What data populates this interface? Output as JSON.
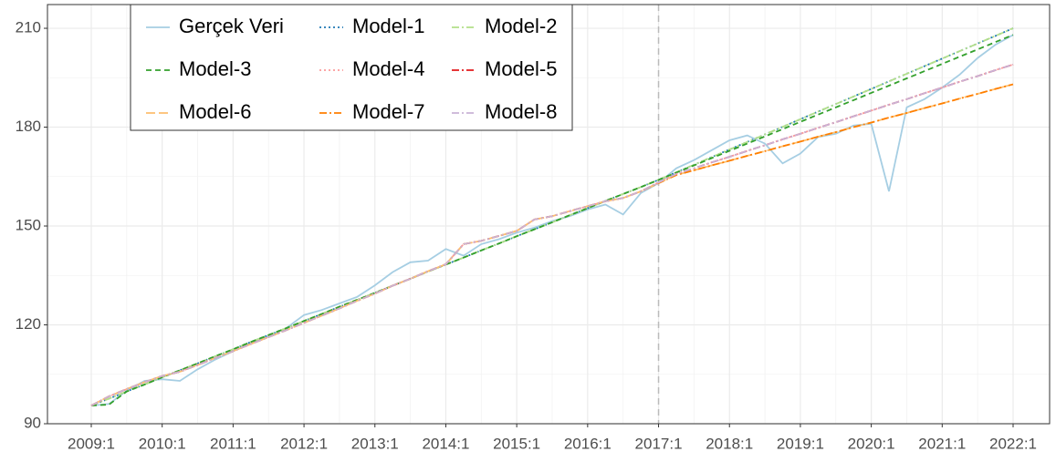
{
  "chart_data": {
    "type": "line",
    "categories": [
      "2009:1",
      null,
      null,
      null,
      "2010:1",
      null,
      null,
      null,
      "2011:1",
      null,
      null,
      null,
      "2012:1",
      null,
      null,
      null,
      "2013:1",
      null,
      null,
      null,
      "2014:1",
      null,
      null,
      null,
      "2015:1",
      null,
      null,
      null,
      "2016:1",
      null,
      null,
      null,
      "2017:1",
      null,
      null,
      null,
      "2018:1",
      null,
      null,
      null,
      "2019:1",
      null,
      null,
      null,
      "2020:1",
      null,
      null,
      null,
      "2021:1",
      null,
      null,
      null,
      "2022:1"
    ],
    "ylim": [
      90,
      217.2
    ],
    "yticks": [
      90,
      120,
      150,
      180,
      210
    ],
    "grid": true,
    "vline": "2017:1",
    "legend": "top-left",
    "series": [
      {
        "name": "Gerçek Veri",
        "color": "#a6cee3",
        "dash": "none",
        "values": [
          95.5,
          96,
          100,
          103,
          103.5,
          103,
          106.5,
          109.5,
          112,
          114.5,
          116.5,
          119,
          123,
          124.5,
          126.5,
          128.5,
          132,
          136,
          139,
          139.5,
          143,
          141,
          144.5,
          146,
          148,
          149.5,
          151.5,
          153,
          155,
          156.5,
          153.5,
          160,
          163,
          167.5,
          170,
          173,
          176,
          177.5,
          175,
          169,
          172,
          177,
          178,
          180.5,
          181,
          160.5,
          186,
          188.5,
          192,
          196,
          201,
          205,
          208
        ]
      },
      {
        "name": "Model-1",
        "color": "#1f78b4",
        "dash": "2,3",
        "values": [
          95.5,
          97.6,
          99.8,
          101.9,
          104.1,
          106.2,
          108.3,
          110.5,
          112.6,
          114.8,
          116.9,
          119.0,
          121.2,
          123.3,
          125.5,
          127.6,
          129.7,
          131.9,
          134.0,
          136.2,
          138.3,
          140.4,
          142.6,
          144.7,
          146.9,
          149.0,
          151.1,
          153.3,
          155.4,
          157.6,
          159.7,
          161.8,
          164.0,
          166.3,
          168.6,
          170.9,
          173.2,
          175.5,
          177.8,
          180.1,
          182.4,
          184.7,
          187.0,
          189.3,
          191.6,
          193.9,
          196.2,
          198.5,
          200.8,
          203.1,
          205.4,
          207.7,
          210.0
        ]
      },
      {
        "name": "Model-2",
        "color": "#b2df8a",
        "dash": "8,3,2,3",
        "values": [
          95.5,
          97.6,
          99.8,
          101.9,
          104.1,
          106.2,
          108.3,
          110.5,
          112.6,
          114.8,
          116.9,
          119.0,
          121.2,
          123.3,
          125.5,
          127.6,
          129.7,
          131.9,
          134.0,
          136.2,
          138.3,
          140.4,
          142.6,
          144.7,
          146.9,
          149.0,
          151.1,
          153.3,
          155.4,
          157.6,
          159.7,
          161.8,
          164.0,
          166.3,
          168.6,
          170.9,
          173.2,
          175.5,
          177.8,
          180.1,
          182.4,
          184.7,
          187.0,
          189.3,
          191.6,
          193.9,
          196.2,
          198.5,
          200.8,
          203.1,
          205.4,
          207.7,
          210.0
        ]
      },
      {
        "name": "Model-3",
        "color": "#33a02c",
        "dash": "6,4",
        "values": [
          95.5,
          95.8,
          99.8,
          101.9,
          104.1,
          106.2,
          108.3,
          110.5,
          112.6,
          114.8,
          116.9,
          119.0,
          121.2,
          123.3,
          125.5,
          127.6,
          129.7,
          131.9,
          134.0,
          136.2,
          138.3,
          140.4,
          142.6,
          144.7,
          146.9,
          149.0,
          151.1,
          153.3,
          155.4,
          157.6,
          159.7,
          161.8,
          164.0,
          166.2,
          168.4,
          170.6,
          172.8,
          175.0,
          177.2,
          179.4,
          181.6,
          183.8,
          186.0,
          188.2,
          190.4,
          192.6,
          194.8,
          197.0,
          199.2,
          201.4,
          203.6,
          205.8,
          208.0
        ]
      },
      {
        "name": "Model-4",
        "color": "#fb9a99",
        "dash": "2,3",
        "values": [
          95.5,
          98.3,
          100.5,
          102.6,
          104.5,
          105.8,
          107.8,
          110.0,
          112.0,
          114.2,
          116.3,
          118.4,
          120.6,
          122.8,
          125.0,
          127.3,
          129.5,
          131.9,
          134.0,
          136.3,
          138.4,
          144.5,
          145.5,
          147.0,
          148.5,
          152.0,
          153.0,
          154.5,
          156.0,
          157.5,
          158.5,
          160.5,
          163.2,
          165.8,
          167.5,
          169.3,
          171.0,
          172.8,
          174.5,
          176.3,
          178.0,
          179.8,
          181.5,
          183.3,
          185.0,
          186.8,
          188.5,
          190.3,
          192.0,
          193.8,
          195.5,
          197.3,
          199.0
        ]
      },
      {
        "name": "Model-5",
        "color": "#e31a1c",
        "dash": "8,3,2,3",
        "values": [
          95.5,
          98.3,
          100.5,
          102.6,
          104.5,
          105.8,
          107.8,
          110.0,
          112.0,
          114.2,
          116.3,
          118.4,
          120.6,
          122.8,
          125.0,
          127.3,
          129.5,
          131.9,
          134.0,
          136.3,
          138.4,
          144.5,
          145.5,
          147.0,
          148.5,
          152.0,
          153.0,
          154.5,
          156.0,
          157.5,
          158.5,
          160.5,
          163.2,
          165.8,
          167.5,
          169.3,
          171.0,
          172.8,
          174.5,
          176.3,
          178.0,
          179.8,
          181.5,
          183.3,
          185.0,
          186.8,
          188.5,
          190.3,
          192.0,
          193.8,
          195.5,
          197.3,
          199.0
        ]
      },
      {
        "name": "Model-6",
        "color": "#fdbf6f",
        "dash": "10,4",
        "values": [
          95.5,
          98.3,
          100.5,
          102.6,
          104.5,
          105.8,
          107.8,
          110.0,
          112.0,
          114.2,
          116.3,
          118.4,
          120.6,
          122.8,
          125.0,
          127.3,
          129.5,
          131.9,
          134.0,
          136.3,
          138.4,
          144.5,
          145.5,
          147.0,
          148.5,
          152.0,
          153.0,
          154.5,
          156.0,
          157.5,
          158.5,
          160.5,
          163.0,
          165.5,
          166.9,
          168.4,
          169.8,
          171.3,
          172.7,
          174.2,
          175.6,
          177.1,
          178.5,
          180.0,
          181.4,
          182.9,
          184.3,
          185.8,
          187.2,
          188.7,
          190.1,
          191.6,
          193.0
        ]
      },
      {
        "name": "Model-7",
        "color": "#ff7f00",
        "dash": "8,3,2,3",
        "values": [
          95.5,
          98.3,
          100.5,
          102.6,
          104.5,
          105.8,
          107.8,
          110.0,
          112.0,
          114.2,
          116.3,
          118.4,
          120.6,
          122.8,
          125.0,
          127.3,
          129.5,
          131.9,
          134.0,
          136.3,
          138.4,
          144.5,
          145.5,
          147.0,
          148.5,
          152.0,
          153.0,
          154.5,
          156.0,
          157.5,
          158.5,
          160.5,
          163.0,
          165.5,
          166.9,
          168.4,
          169.8,
          171.3,
          172.7,
          174.2,
          175.6,
          177.1,
          178.5,
          180.0,
          181.4,
          182.9,
          184.3,
          185.8,
          187.2,
          188.7,
          190.1,
          191.6,
          193.0
        ]
      },
      {
        "name": "Model-8",
        "color": "#cab2d6",
        "dash": "8,3,2,3",
        "values": [
          95.5,
          98.3,
          100.5,
          102.6,
          104.5,
          105.8,
          107.8,
          110.0,
          112.0,
          114.2,
          116.3,
          118.4,
          120.6,
          122.8,
          125.0,
          127.3,
          129.5,
          131.9,
          134.0,
          136.3,
          138.4,
          144.5,
          145.5,
          147.0,
          148.5,
          152.0,
          153.0,
          154.5,
          156.0,
          157.5,
          158.5,
          160.5,
          163.2,
          165.8,
          167.5,
          169.3,
          171.0,
          172.8,
          174.5,
          176.3,
          178.0,
          179.8,
          181.5,
          183.3,
          185.0,
          186.8,
          188.5,
          190.3,
          192.0,
          193.8,
          195.5,
          197.3,
          199.0
        ]
      }
    ]
  }
}
